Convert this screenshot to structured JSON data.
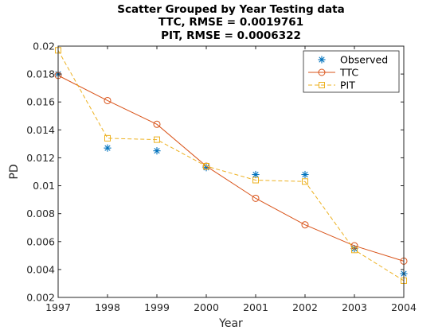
{
  "chart_data": {
    "type": "line",
    "title": [
      "Scatter Grouped by Year Testing data",
      "TTC, RMSE = 0.0019761",
      "PIT, RMSE = 0.0006322"
    ],
    "xlabel": "Year",
    "ylabel": "PD",
    "xlim": [
      1997,
      2004
    ],
    "ylim": [
      0.002,
      0.02
    ],
    "xticks": [
      1997,
      1998,
      1999,
      2000,
      2001,
      2002,
      2003,
      2004
    ],
    "yticks": [
      0.002,
      0.004,
      0.006,
      0.008,
      0.01,
      0.012,
      0.014,
      0.016,
      0.018,
      0.02
    ],
    "ytick_labels": [
      "0.002",
      "0.004",
      "0.006",
      "0.008",
      "0.01",
      "0.012",
      "0.014",
      "0.016",
      "0.018",
      "0.02"
    ],
    "legend_position": "top-right",
    "grid": false,
    "series": [
      {
        "name": "Observed",
        "marker": "asterisk",
        "line": "none",
        "color": "#0072BD",
        "x": [
          1997,
          1998,
          1999,
          2000,
          2001,
          2002,
          2003,
          2004
        ],
        "y": [
          0.018,
          0.0127,
          0.0125,
          0.0113,
          0.0108,
          0.0108,
          0.0055,
          0.0037
        ]
      },
      {
        "name": "TTC",
        "marker": "circle",
        "line": "solid",
        "color": "#D95319",
        "x": [
          1997,
          1998,
          1999,
          2000,
          2001,
          2002,
          2003,
          2004
        ],
        "y": [
          0.0179,
          0.0161,
          0.0144,
          0.0114,
          0.0091,
          0.0072,
          0.0057,
          0.0046
        ]
      },
      {
        "name": "PIT",
        "marker": "square",
        "line": "dashed",
        "color": "#EDB120",
        "x": [
          1997,
          1998,
          1999,
          2000,
          2001,
          2002,
          2003,
          2004
        ],
        "y": [
          0.0197,
          0.0134,
          0.0133,
          0.0114,
          0.0104,
          0.0103,
          0.0054,
          0.0032
        ]
      }
    ]
  }
}
